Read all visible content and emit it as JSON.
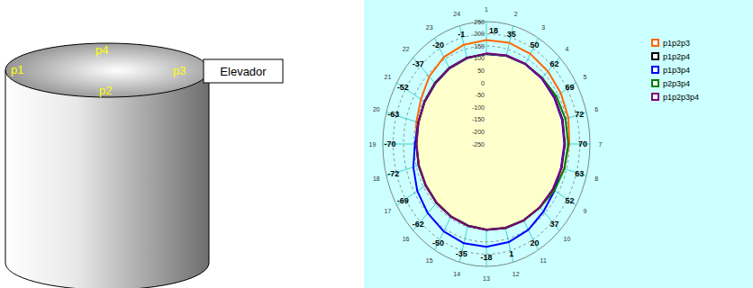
{
  "diagram": {
    "points": [
      "p1",
      "p2",
      "p3",
      "p4"
    ],
    "elevator": "Elevador"
  },
  "chart_data": {
    "type": "radar",
    "categories": [
      "1",
      "2",
      "3",
      "4",
      "5",
      "6",
      "7",
      "8",
      "9",
      "10",
      "11",
      "12",
      "13",
      "14",
      "15",
      "16",
      "17",
      "18",
      "19",
      "20",
      "21",
      "22",
      "23",
      "24"
    ],
    "ylim": [
      -250,
      250
    ],
    "yticks": [
      -250,
      -200,
      -150,
      -100,
      -50,
      0,
      50,
      100,
      150,
      200,
      250
    ],
    "grid": true,
    "legend": "right",
    "annotations": [
      "18",
      "35",
      "50",
      "62",
      "69",
      "72",
      "70",
      "63",
      "52",
      "37",
      "20",
      "1",
      "-18",
      "-35",
      "-50",
      "-62",
      "-69",
      "-72",
      "-70",
      "-63",
      "-52",
      "-37",
      "-20",
      "-1"
    ],
    "series": [
      {
        "name": "p1p2p3",
        "color": "#ff6600",
        "values": [
          175,
          178,
          175,
          170,
          165,
          160,
          150,
          138,
          125,
          115,
          110,
          105,
          100,
          95,
          92,
          90,
          88,
          88,
          88,
          100,
          115,
          140,
          160,
          170
        ]
      },
      {
        "name": "p1p2p4",
        "color": "#000000",
        "values": [
          118,
          123,
          127,
          129,
          131,
          131,
          129,
          126,
          121,
          116,
          111,
          106,
          101,
          96,
          93,
          91,
          89,
          89,
          89,
          91,
          96,
          102,
          109,
          115
        ]
      },
      {
        "name": "p1p3p4",
        "color": "#0000ff",
        "values": [
          118,
          123,
          126,
          128,
          128,
          128,
          126,
          123,
          130,
          140,
          155,
          165,
          170,
          170,
          162,
          150,
          135,
          115,
          95,
          90,
          94,
          99,
          106,
          112
        ]
      },
      {
        "name": "p2p3p4",
        "color": "#008000",
        "values": [
          119,
          124,
          127,
          132,
          140,
          145,
          145,
          140,
          130,
          116,
          109,
          104,
          99,
          94,
          91,
          89,
          87,
          87,
          87,
          89,
          94,
          99,
          107,
          113
        ]
      },
      {
        "name": "p1p2p3p4",
        "color": "#800080",
        "values": [
          120,
          125,
          128,
          130,
          130,
          130,
          128,
          125,
          120,
          115,
          110,
          105,
          100,
          95,
          92,
          90,
          88,
          88,
          88,
          90,
          95,
          100,
          108,
          114
        ]
      }
    ]
  }
}
